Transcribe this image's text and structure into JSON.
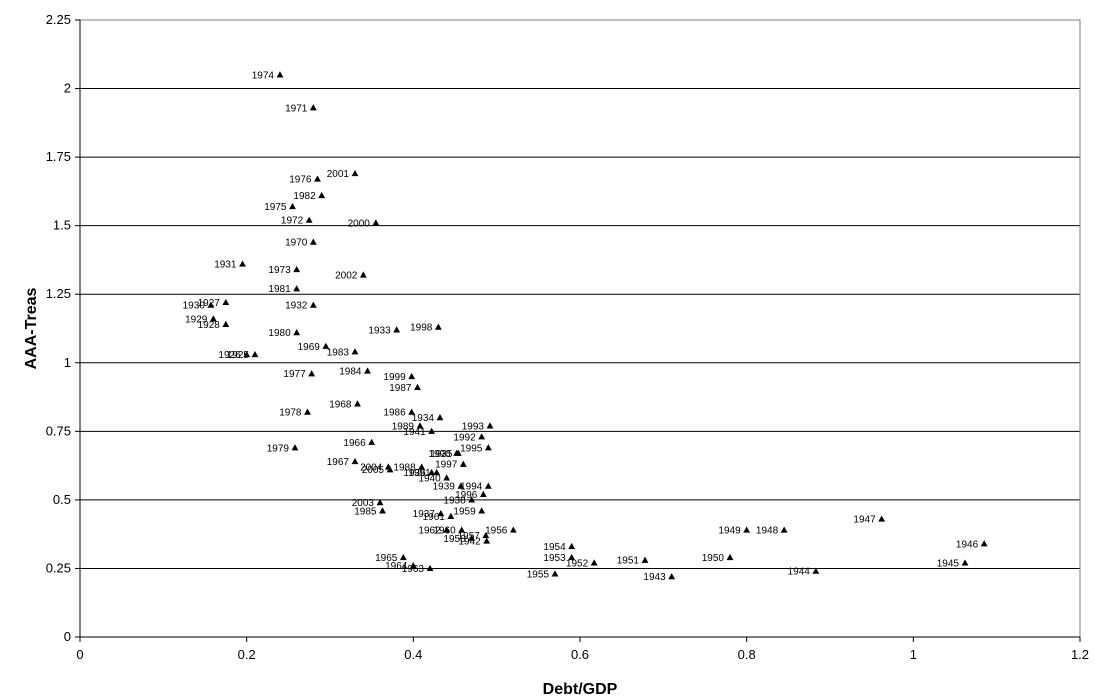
{
  "chart_data": {
    "type": "scatter",
    "xlabel": "Debt/GDP",
    "ylabel": "AAA-Treas",
    "xlim": [
      0,
      1.2
    ],
    "ylim": [
      0,
      2.25
    ],
    "xticks": [
      0,
      0.2,
      0.4,
      0.6,
      0.8,
      1,
      1.2
    ],
    "yticks": [
      0,
      0.25,
      0.5,
      0.75,
      1,
      1.25,
      1.5,
      1.75,
      2,
      2.25
    ],
    "xtick_labels": [
      "0",
      "0.2",
      "0.4",
      "0.6",
      "0.8",
      "1",
      "1.2"
    ],
    "ytick_labels": [
      "0",
      "0.25",
      "0.5",
      "0.75",
      "1",
      "1.25",
      "1.5",
      "1.75",
      "2",
      "2.25"
    ],
    "grid": "horizontal",
    "marker": "triangle",
    "marker_color": "#000000",
    "points": [
      {
        "label": "1974",
        "x": 0.24,
        "y": 2.05
      },
      {
        "label": "1971",
        "x": 0.28,
        "y": 1.93
      },
      {
        "label": "2001",
        "x": 0.33,
        "y": 1.69
      },
      {
        "label": "1976",
        "x": 0.285,
        "y": 1.67
      },
      {
        "label": "1982",
        "x": 0.29,
        "y": 1.61
      },
      {
        "label": "1975",
        "x": 0.255,
        "y": 1.57
      },
      {
        "label": "1972",
        "x": 0.275,
        "y": 1.52
      },
      {
        "label": "2000",
        "x": 0.355,
        "y": 1.51
      },
      {
        "label": "1970",
        "x": 0.28,
        "y": 1.44
      },
      {
        "label": "1931",
        "x": 0.195,
        "y": 1.36
      },
      {
        "label": "1973",
        "x": 0.26,
        "y": 1.34
      },
      {
        "label": "2002",
        "x": 0.34,
        "y": 1.32
      },
      {
        "label": "1981",
        "x": 0.26,
        "y": 1.27
      },
      {
        "label": "1927",
        "x": 0.175,
        "y": 1.22
      },
      {
        "label": "1930",
        "x": 0.157,
        "y": 1.21
      },
      {
        "label": "1932",
        "x": 0.28,
        "y": 1.21
      },
      {
        "label": "1929",
        "x": 0.16,
        "y": 1.16
      },
      {
        "label": "1928",
        "x": 0.175,
        "y": 1.14
      },
      {
        "label": "1933",
        "x": 0.38,
        "y": 1.12
      },
      {
        "label": "1998",
        "x": 0.43,
        "y": 1.13
      },
      {
        "label": "1980",
        "x": 0.26,
        "y": 1.11
      },
      {
        "label": "1969",
        "x": 0.295,
        "y": 1.06
      },
      {
        "label": "1983",
        "x": 0.33,
        "y": 1.04
      },
      {
        "label": "1926",
        "x": 0.2,
        "y": 1.03
      },
      {
        "label": "1925",
        "x": 0.21,
        "y": 1.03
      },
      {
        "label": "1984",
        "x": 0.345,
        "y": 0.97
      },
      {
        "label": "1977",
        "x": 0.278,
        "y": 0.96
      },
      {
        "label": "1999",
        "x": 0.398,
        "y": 0.95
      },
      {
        "label": "1987",
        "x": 0.405,
        "y": 0.91
      },
      {
        "label": "1968",
        "x": 0.333,
        "y": 0.85
      },
      {
        "label": "1978",
        "x": 0.273,
        "y": 0.82
      },
      {
        "label": "1986",
        "x": 0.398,
        "y": 0.82
      },
      {
        "label": "1934",
        "x": 0.432,
        "y": 0.8
      },
      {
        "label": "1989",
        "x": 0.408,
        "y": 0.77
      },
      {
        "label": "1993",
        "x": 0.492,
        "y": 0.77
      },
      {
        "label": "1941",
        "x": 0.422,
        "y": 0.75
      },
      {
        "label": "1992",
        "x": 0.482,
        "y": 0.73
      },
      {
        "label": "1966",
        "x": 0.35,
        "y": 0.71
      },
      {
        "label": "1979",
        "x": 0.258,
        "y": 0.69
      },
      {
        "label": "1995",
        "x": 0.49,
        "y": 0.69
      },
      {
        "label": "1935",
        "x": 0.454,
        "y": 0.67
      },
      {
        "label": "1990",
        "x": 0.452,
        "y": 0.67
      },
      {
        "label": "1967",
        "x": 0.33,
        "y": 0.64
      },
      {
        "label": "1997",
        "x": 0.46,
        "y": 0.63
      },
      {
        "label": "2004",
        "x": 0.37,
        "y": 0.62
      },
      {
        "label": "1988",
        "x": 0.41,
        "y": 0.62
      },
      {
        "label": "2005",
        "x": 0.372,
        "y": 0.61
      },
      {
        "label": "1936",
        "x": 0.422,
        "y": 0.6
      },
      {
        "label": "1991",
        "x": 0.428,
        "y": 0.6
      },
      {
        "label": "1940",
        "x": 0.44,
        "y": 0.58
      },
      {
        "label": "1939",
        "x": 0.457,
        "y": 0.55
      },
      {
        "label": "1994",
        "x": 0.49,
        "y": 0.55
      },
      {
        "label": "1996",
        "x": 0.484,
        "y": 0.52
      },
      {
        "label": "1938",
        "x": 0.47,
        "y": 0.5
      },
      {
        "label": "2003",
        "x": 0.36,
        "y": 0.49
      },
      {
        "label": "1959",
        "x": 0.482,
        "y": 0.46
      },
      {
        "label": "1985",
        "x": 0.363,
        "y": 0.46
      },
      {
        "label": "1937",
        "x": 0.433,
        "y": 0.45
      },
      {
        "label": "1961",
        "x": 0.445,
        "y": 0.44
      },
      {
        "label": "1956",
        "x": 0.52,
        "y": 0.39
      },
      {
        "label": "1949",
        "x": 0.8,
        "y": 0.39
      },
      {
        "label": "1948",
        "x": 0.845,
        "y": 0.39
      },
      {
        "label": "1947",
        "x": 0.962,
        "y": 0.43
      },
      {
        "label": "1962",
        "x": 0.44,
        "y": 0.39
      },
      {
        "label": "1960",
        "x": 0.458,
        "y": 0.39
      },
      {
        "label": "1957",
        "x": 0.487,
        "y": 0.37
      },
      {
        "label": "1958",
        "x": 0.47,
        "y": 0.36
      },
      {
        "label": "1942",
        "x": 0.488,
        "y": 0.35
      },
      {
        "label": "1946",
        "x": 1.085,
        "y": 0.34
      },
      {
        "label": "1954",
        "x": 0.59,
        "y": 0.33
      },
      {
        "label": "1953",
        "x": 0.59,
        "y": 0.29
      },
      {
        "label": "1965",
        "x": 0.388,
        "y": 0.29
      },
      {
        "label": "1950",
        "x": 0.78,
        "y": 0.29
      },
      {
        "label": "1951",
        "x": 0.678,
        "y": 0.28
      },
      {
        "label": "1952",
        "x": 0.617,
        "y": 0.27
      },
      {
        "label": "1945",
        "x": 1.062,
        "y": 0.27
      },
      {
        "label": "1964",
        "x": 0.4,
        "y": 0.26
      },
      {
        "label": "1963",
        "x": 0.42,
        "y": 0.25
      },
      {
        "label": "1944",
        "x": 0.883,
        "y": 0.24
      },
      {
        "label": "1955",
        "x": 0.57,
        "y": 0.23
      },
      {
        "label": "1943",
        "x": 0.71,
        "y": 0.22
      }
    ]
  }
}
